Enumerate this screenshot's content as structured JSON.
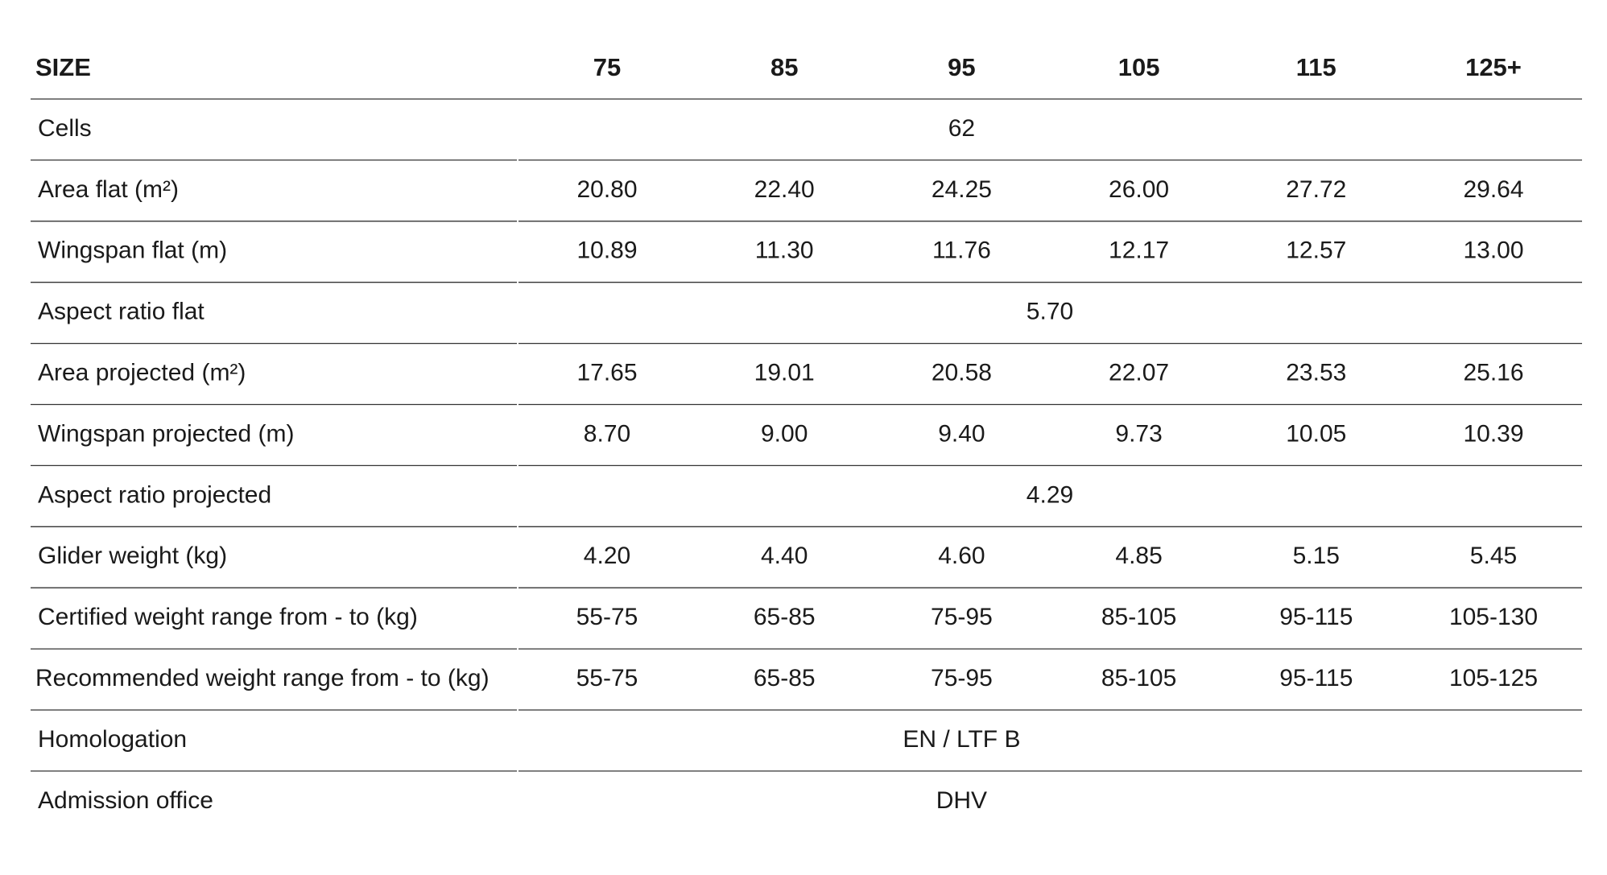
{
  "table": {
    "header": [
      "SIZE",
      "75",
      "85",
      "95",
      "105",
      "115",
      "125+"
    ],
    "rows": [
      [
        "Cells",
        "62"
      ],
      [
        "Area flat (m²)",
        "20.80",
        "22.40",
        "24.25",
        "26.00",
        "27.72",
        "29.64"
      ],
      [
        "Wingspan flat (m)",
        "10.89",
        "11.30",
        "11.76",
        "12.17",
        "12.57",
        "13.00"
      ],
      [
        "Aspect ratio flat",
        "5.70"
      ],
      [
        "Area projected (m²)",
        "17.65",
        "19.01",
        "20.58",
        "22.07",
        "23.53",
        "25.16"
      ],
      [
        "Wingspan projected (m)",
        "8.70",
        "9.00",
        "9.40",
        "9.73",
        "10.05",
        "10.39"
      ],
      [
        "Aspect ratio projected",
        "4.29"
      ],
      [
        "Glider weight (kg)",
        "4.20",
        "4.40",
        "4.60",
        "4.85",
        "5.15",
        "5.45"
      ],
      [
        "Certified weight range from - to (kg)",
        "55-75",
        "65-85",
        "75-95",
        "85-105",
        "95-115",
        "105-130"
      ],
      [
        "Recommended weight range from - to (kg)",
        "55-75",
        "65-85",
        "75-95",
        "85-105",
        "95-115",
        "105-125"
      ],
      [
        "Homologation",
        "EN / LTF B"
      ],
      [
        "Admission office",
        "DHV"
      ]
    ]
  }
}
